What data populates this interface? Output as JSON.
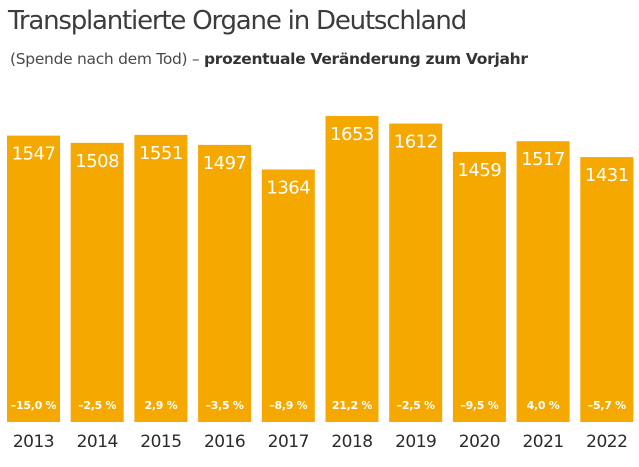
{
  "title": "Transplantierte Organe in Deutschland",
  "subtitle_plain": "(Spende nach dem Tod)",
  "subtitle_separator": " – ",
  "subtitle_bold": "prozentuale Veränderung zum Vorjahr",
  "colors": {
    "bar": "#f5a800",
    "label": "#ffffff",
    "axis_text": "#2b2b2b",
    "title": "#3c3c3c"
  },
  "chart_data": {
    "type": "bar",
    "title": "Transplantierte Organe in Deutschland",
    "subtitle": "(Spende nach dem Tod) – prozentuale Veränderung zum Vorjahr",
    "xlabel": "",
    "ylabel": "",
    "categories": [
      "2013",
      "2014",
      "2015",
      "2016",
      "2017",
      "2018",
      "2019",
      "2020",
      "2021",
      "2022"
    ],
    "values": [
      1547,
      1508,
      1551,
      1497,
      1364,
      1653,
      1612,
      1459,
      1517,
      1431
    ],
    "change_labels": [
      "–15,0 %",
      "–2,5 %",
      "2,9 %",
      "–3,5 %",
      "–8,9 %",
      "21,2 %",
      "–2,5 %",
      "–9,5 %",
      "4,0 %",
      "–5,7 %"
    ],
    "grid": false,
    "legend": "none"
  }
}
